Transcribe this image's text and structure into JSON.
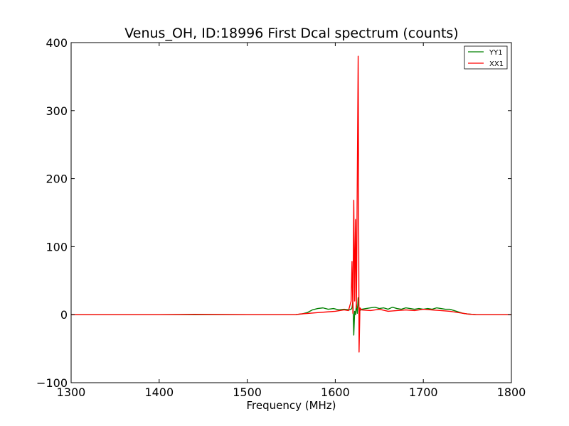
{
  "chart_data": {
    "type": "line",
    "title": "Venus_OH, ID:18996 First Dcal spectrum (counts)",
    "xlabel": "Frequency (MHz)",
    "ylabel": "",
    "xlim": [
      1300,
      1800
    ],
    "ylim": [
      -100,
      400
    ],
    "xticks": [
      "1300",
      "1400",
      "1500",
      "1600",
      "1700",
      "1800"
    ],
    "yticks": [
      "−100",
      "0",
      "100",
      "200",
      "300",
      "400"
    ],
    "grid": false,
    "legend_position": "top-right",
    "series": [
      {
        "name": "YY1",
        "color": "#008000",
        "x": [
          1300,
          1400,
          1500,
          1555,
          1562,
          1568,
          1574,
          1580,
          1586,
          1592,
          1598,
          1604,
          1610,
          1616,
          1618,
          1619,
          1620,
          1621,
          1622,
          1623,
          1624,
          1625,
          1626,
          1627,
          1628,
          1630,
          1635,
          1640,
          1645,
          1650,
          1655,
          1660,
          1665,
          1670,
          1675,
          1680,
          1685,
          1690,
          1695,
          1700,
          1705,
          1710,
          1715,
          1720,
          1725,
          1730,
          1735,
          1740,
          1745,
          1750,
          1760,
          1780,
          1800
        ],
        "y": [
          0,
          0,
          0,
          0,
          1,
          3,
          7,
          9,
          10,
          8,
          9,
          7,
          8,
          7,
          8,
          10,
          20,
          -30,
          5,
          0,
          15,
          2,
          25,
          8,
          6,
          8,
          9,
          10,
          11,
          9,
          10,
          8,
          11,
          9,
          8,
          10,
          9,
          8,
          9,
          8,
          9,
          8,
          10,
          9,
          8,
          8,
          6,
          4,
          2,
          1,
          0,
          0,
          0
        ]
      },
      {
        "name": "XX1",
        "color": "#ff0000",
        "x": [
          1300,
          1400,
          1440,
          1500,
          1555,
          1560,
          1570,
          1580,
          1590,
          1600,
          1610,
          1615,
          1618,
          1619,
          1620,
          1621,
          1622,
          1623,
          1624,
          1625,
          1626,
          1627,
          1628,
          1630,
          1640,
          1650,
          1660,
          1670,
          1680,
          1690,
          1700,
          1710,
          1720,
          1730,
          1740,
          1750,
          1760,
          1780,
          1800
        ],
        "y": [
          0,
          0,
          0.5,
          0,
          0,
          1,
          2,
          3,
          4,
          5,
          7,
          6,
          20,
          78,
          2,
          168,
          20,
          140,
          10,
          200,
          380,
          -55,
          10,
          7,
          6,
          8,
          5,
          6,
          7,
          6,
          8,
          7,
          6,
          5,
          3,
          1,
          0,
          0,
          0
        ]
      }
    ]
  }
}
